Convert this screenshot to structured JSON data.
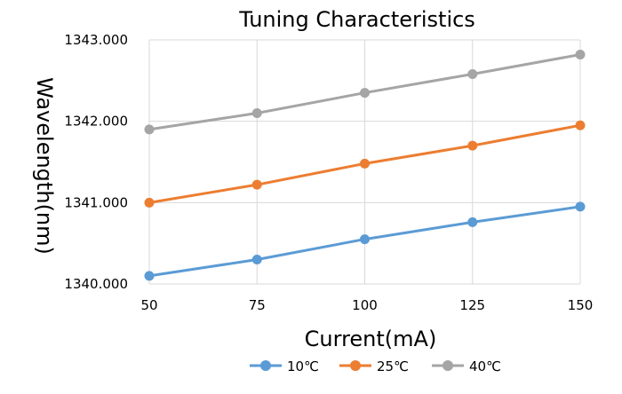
{
  "chart_data": {
    "type": "line",
    "title": "Tuning Characteristics",
    "xlabel": "Current(mA)",
    "ylabel": "Wavelength(nm)",
    "x": [
      50,
      75,
      100,
      125,
      150
    ],
    "x_tick_labels": [
      "50",
      "75",
      "100",
      "125",
      "150"
    ],
    "ylim": [
      1340,
      1343
    ],
    "y_ticks": [
      1340,
      1341,
      1342,
      1343
    ],
    "y_tick_labels": [
      "1340.000",
      "1341.000",
      "1342.000",
      "1343.000"
    ],
    "grid": true,
    "legend_position": "bottom",
    "series": [
      {
        "name": "10℃",
        "color": "#5b9bd5",
        "values": [
          1340.1,
          1340.3,
          1340.55,
          1340.76,
          1340.95
        ]
      },
      {
        "name": "25℃",
        "color": "#ed7d31",
        "values": [
          1341.0,
          1341.22,
          1341.48,
          1341.7,
          1341.95
        ]
      },
      {
        "name": "40℃",
        "color": "#a5a5a5",
        "values": [
          1341.9,
          1342.1,
          1342.35,
          1342.58,
          1342.82
        ]
      }
    ]
  }
}
